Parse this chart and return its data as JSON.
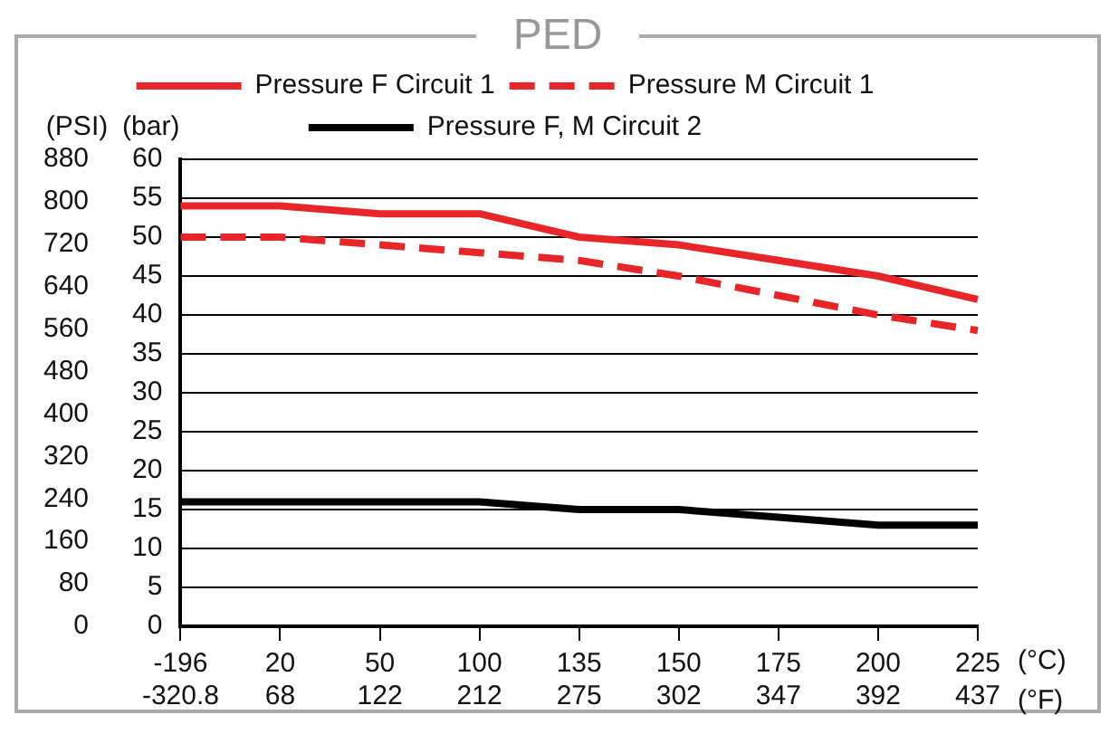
{
  "chart_data": {
    "type": "line",
    "title": "PED",
    "categories": [
      "-196\n-320.8",
      "20\n68",
      "50\n122",
      "100\n212",
      "135\n275",
      "150\n302",
      "175\n347",
      "200\n392",
      "225\n437"
    ],
    "xlabel": "(°C)\n(°F)",
    "ylabel": "(bar)",
    "y2label": "(PSI)",
    "ylim": [
      0,
      60
    ],
    "yticks": [
      0,
      5,
      10,
      15,
      20,
      25,
      30,
      35,
      40,
      45,
      50,
      55,
      60
    ],
    "y2lim": [
      0,
      880
    ],
    "y2ticks": [
      0,
      80,
      160,
      240,
      320,
      400,
      480,
      560,
      640,
      720,
      800,
      880
    ],
    "series": [
      {
        "name": "Pressure F Circuit 1",
        "color": "#e8262a",
        "line_style": "solid",
        "values": [
          54,
          54,
          53,
          53,
          50,
          49,
          47,
          45,
          42
        ]
      },
      {
        "name": "Pressure M Circuit 1",
        "color": "#e8262a",
        "line_style": "dashed",
        "values": [
          50,
          50,
          49,
          48,
          47,
          45,
          42.5,
          40,
          38
        ]
      },
      {
        "name": "Pressure F, M Circuit 2",
        "color": "#000000",
        "line_style": "solid",
        "values": [
          16,
          16,
          16,
          16,
          15,
          15,
          14,
          13,
          13
        ]
      }
    ],
    "grid": "y",
    "legend": "top",
    "marker": "none"
  }
}
